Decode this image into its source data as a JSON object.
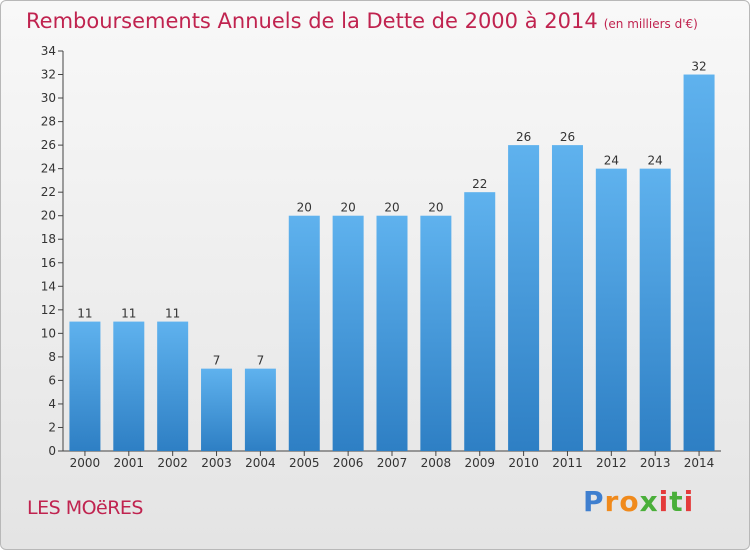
{
  "chart_data": {
    "type": "bar",
    "title": "Remboursements Annuels de la Dette de 2000 à 2014",
    "unit_label": "(en milliers d'€)",
    "xlabel": "",
    "ylabel": "",
    "categories": [
      "2000",
      "2001",
      "2002",
      "2003",
      "2004",
      "2005",
      "2006",
      "2007",
      "2008",
      "2009",
      "2010",
      "2011",
      "2012",
      "2013",
      "2014"
    ],
    "values": [
      11,
      11,
      11,
      7,
      7,
      20,
      20,
      20,
      20,
      22,
      26,
      26,
      24,
      24,
      32
    ],
    "ylim": [
      0,
      34
    ],
    "yticks": [
      0,
      2,
      4,
      6,
      8,
      10,
      12,
      14,
      16,
      18,
      20,
      22,
      24,
      26,
      28,
      30,
      32,
      34
    ],
    "grid": false,
    "bar_color": "#4a9fe0"
  },
  "footer": {
    "commune": "LES MOëRES",
    "logo": "Proxiti"
  }
}
